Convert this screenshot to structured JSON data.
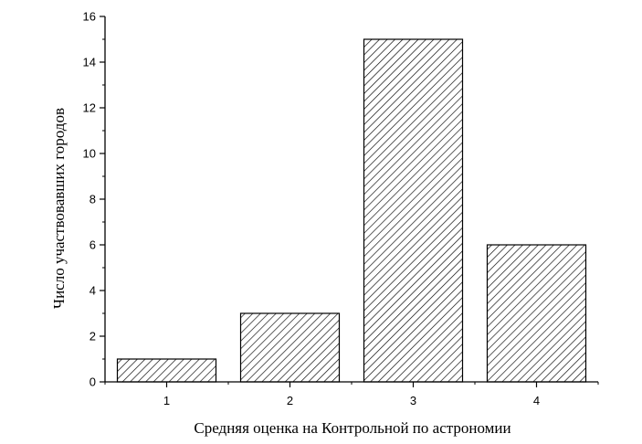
{
  "chart_data": {
    "type": "bar",
    "title": "",
    "xlabel": "Средняя оценка на Контрольной по астрономии",
    "ylabel": "Число участвовавших городов",
    "categories": [
      "1",
      "2",
      "3",
      "4"
    ],
    "values": [
      1,
      3,
      15,
      6
    ],
    "ylim": [
      0,
      16
    ],
    "yticks": [
      "0",
      "2",
      "4",
      "6",
      "8",
      "10",
      "12",
      "14",
      "16"
    ],
    "grid": false,
    "bar_fill": "diagonal-hatch",
    "colors": {
      "bar_stroke": "#000000",
      "hatch": "#000000",
      "background": "#ffffff"
    }
  }
}
